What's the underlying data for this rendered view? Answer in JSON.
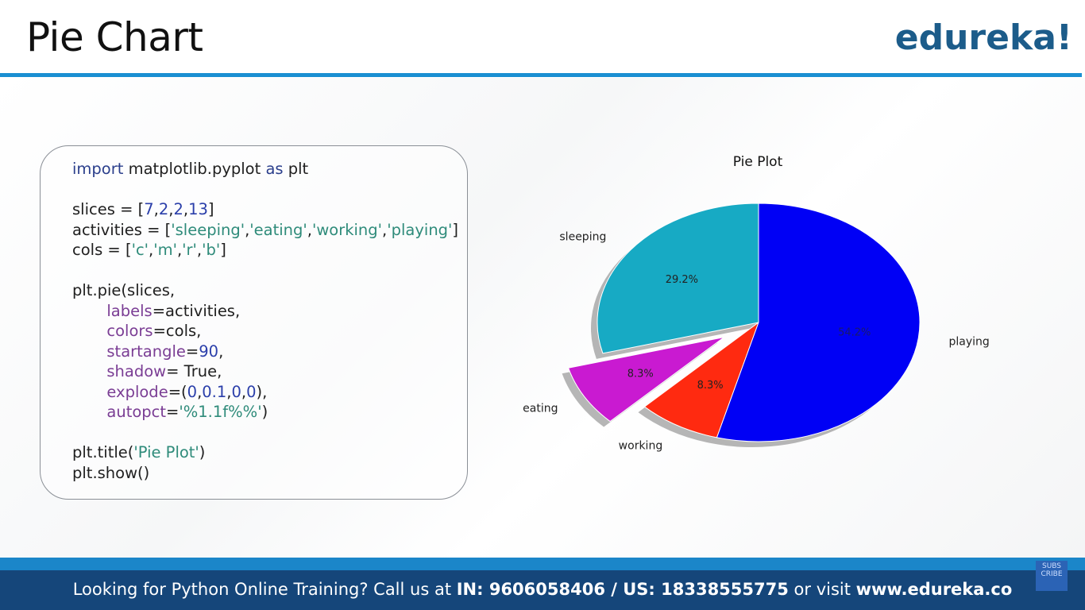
{
  "slide": {
    "title": "Pie Chart",
    "logo": "edureka!"
  },
  "code": {
    "l1_kw1": "import",
    "l1_mod": " matplotlib.pyplot ",
    "l1_kw2": "as",
    "l1_alias": " plt",
    "l2_pre": "slices = [",
    "l2_vals": [
      "7",
      "2",
      "2",
      "13"
    ],
    "l3_pre": "activities = [",
    "l3_vals": [
      "'sleeping'",
      "'eating'",
      "'working'",
      "'playing'"
    ],
    "l4_pre": "cols = [",
    "l4_vals": [
      "'c'",
      "'m'",
      "'r'",
      "'b'"
    ],
    "l5": "plt.pie(slices,",
    "l6_arg": "labels",
    "l6_rest": "=activities,",
    "l7_arg": "colors",
    "l7_rest": "=cols,",
    "l8_arg": "startangle",
    "l8_num": "90",
    "l9_arg": "shadow",
    "l9_rest": "= True,",
    "l10_arg": "explode",
    "l10_vals": [
      "0",
      "0.1",
      "0",
      "0"
    ],
    "l11_arg": "autopct",
    "l11_str": "'%1.1f%%'",
    "l12_pre": "plt.title(",
    "l12_str": "'Pie Plot'",
    "l13": "plt.show()"
  },
  "chart_data": {
    "type": "pie",
    "title": "Pie Plot",
    "categories": [
      "sleeping",
      "eating",
      "working",
      "playing"
    ],
    "values": [
      7,
      2,
      2,
      13
    ],
    "percent_labels": [
      "29.2%",
      "8.3%",
      "8.3%",
      "54.2%"
    ],
    "colors": [
      "#17aac4",
      "#c91ad1",
      "#ff2a10",
      "#0000f5"
    ],
    "startangle": 90,
    "explode": [
      0,
      0.1,
      0,
      0
    ],
    "shadow": true
  },
  "footer": {
    "text_pre": "Looking for Python Online Training? Call us at ",
    "phones": "IN: 9606058406 / US: 18338555775",
    "text_mid": " or visit ",
    "site": "www.edureka.co",
    "subscribe_badge": "SUBS CRIBE"
  }
}
